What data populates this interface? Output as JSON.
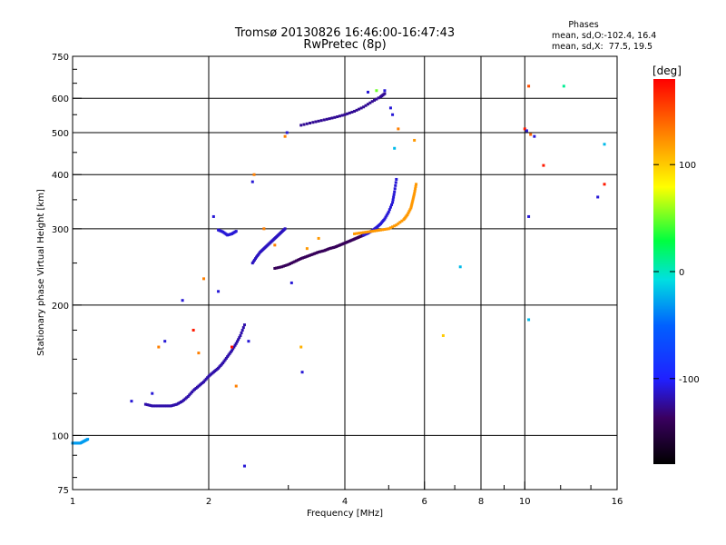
{
  "chart_data": {
    "type": "scatter",
    "title": "Tromsø 20130826 16:46:00-16:47:43",
    "subtitle": "RwPretec (8p)",
    "xlabel": "Frequency [MHz]",
    "ylabel": "Stationary phase Virtual Height [km]",
    "x_scale": "log",
    "y_scale": "log",
    "xlim": [
      1,
      16
    ],
    "ylim": [
      75,
      750
    ],
    "x_ticks": [
      1,
      2,
      4,
      6,
      8,
      10,
      16
    ],
    "x_tick_labels": [
      "1",
      "2",
      "4",
      "6",
      "8",
      "10",
      "16"
    ],
    "x_grid": [
      2,
      4,
      6,
      8,
      10
    ],
    "y_ticks": [
      75,
      100,
      200,
      300,
      400,
      500,
      600,
      750
    ],
    "y_tick_labels": [
      "75",
      "100",
      "200",
      "300",
      "400",
      "500",
      "600",
      "750"
    ],
    "y_grid": [
      100,
      200,
      300,
      400,
      500,
      600
    ],
    "grid": true,
    "phase_stats": {
      "header": "Phases",
      "line_o": "mean, sd,O:-102.4, 16.4",
      "line_x": "mean, sd,X:  77.5, 19.5"
    },
    "colorbar": {
      "label": "[deg]",
      "range": [
        -180,
        180
      ],
      "ticks": [
        100,
        0,
        -100
      ],
      "tick_labels": [
        "100",
        "0",
        "-100"
      ]
    },
    "traces": [
      {
        "x": [
          1.0,
          1.02,
          1.04,
          1.06,
          1.08
        ],
        "y": [
          96,
          96,
          96,
          97,
          98
        ],
        "phase": -30
      },
      {
        "x": [
          1.45,
          1.5,
          1.55,
          1.6,
          1.65,
          1.7,
          1.75,
          1.8,
          1.85,
          1.9,
          1.95,
          2.0,
          2.05,
          2.1,
          2.15,
          2.2,
          2.25,
          2.3,
          2.35,
          2.4
        ],
        "y": [
          118,
          117,
          117,
          117,
          117,
          118,
          120,
          123,
          127,
          130,
          133,
          137,
          140,
          143,
          147,
          152,
          157,
          163,
          170,
          180
        ],
        "phase": -120
      },
      {
        "x": [
          2.8,
          2.9,
          3.0,
          3.1,
          3.2,
          3.3,
          3.4,
          3.5,
          3.6,
          3.7,
          3.8,
          3.9,
          4.0,
          4.1,
          4.2,
          4.3,
          4.4
        ],
        "y": [
          243,
          245,
          248,
          252,
          256,
          259,
          262,
          265,
          267,
          270,
          272,
          275,
          278,
          281,
          284,
          287,
          290
        ],
        "phase": -140
      },
      {
        "x": [
          4.4,
          4.5,
          4.6,
          4.7,
          4.8,
          4.9,
          5.0,
          5.1,
          5.15,
          5.2
        ],
        "y": [
          290,
          293,
          297,
          302,
          308,
          316,
          328,
          345,
          365,
          390
        ],
        "phase": -110
      },
      {
        "x": [
          4.2,
          4.4,
          4.6,
          4.8,
          5.0,
          5.2,
          5.4,
          5.5,
          5.6,
          5.65,
          5.7,
          5.75
        ],
        "y": [
          292,
          294,
          296,
          298,
          300,
          306,
          315,
          323,
          335,
          348,
          362,
          380
        ],
        "phase": 120
      },
      {
        "x": [
          3.2,
          3.4,
          3.6,
          3.8,
          4.0,
          4.2,
          4.4,
          4.6,
          4.8,
          4.9
        ],
        "y": [
          520,
          528,
          535,
          542,
          550,
          560,
          573,
          590,
          605,
          615
        ],
        "phase": -125
      },
      {
        "x": [
          2.5,
          2.55,
          2.6,
          2.65,
          2.7,
          2.75,
          2.8,
          2.85,
          2.9,
          2.95
        ],
        "y": [
          250,
          258,
          265,
          270,
          275,
          280,
          285,
          290,
          295,
          300
        ],
        "phase": -115
      },
      {
        "x": [
          2.1,
          2.15,
          2.2,
          2.25,
          2.3
        ],
        "y": [
          298,
          295,
          290,
          292,
          296
        ],
        "phase": -110
      }
    ],
    "scattered_points": [
      {
        "x": 1.35,
        "y": 120,
        "phase": -110
      },
      {
        "x": 1.5,
        "y": 125,
        "phase": -110
      },
      {
        "x": 1.55,
        "y": 160,
        "phase": 130
      },
      {
        "x": 1.6,
        "y": 165,
        "phase": -110
      },
      {
        "x": 1.75,
        "y": 205,
        "phase": -110
      },
      {
        "x": 1.85,
        "y": 175,
        "phase": 170
      },
      {
        "x": 1.9,
        "y": 155,
        "phase": 130
      },
      {
        "x": 1.95,
        "y": 230,
        "phase": 130
      },
      {
        "x": 2.05,
        "y": 320,
        "phase": -110
      },
      {
        "x": 2.1,
        "y": 215,
        "phase": -110
      },
      {
        "x": 2.25,
        "y": 160,
        "phase": 175
      },
      {
        "x": 2.3,
        "y": 130,
        "phase": 130
      },
      {
        "x": 2.45,
        "y": 165,
        "phase": -110
      },
      {
        "x": 2.5,
        "y": 385,
        "phase": -110
      },
      {
        "x": 2.52,
        "y": 400,
        "phase": 130
      },
      {
        "x": 2.4,
        "y": 85,
        "phase": -110
      },
      {
        "x": 2.65,
        "y": 300,
        "phase": 130
      },
      {
        "x": 2.8,
        "y": 275,
        "phase": 130
      },
      {
        "x": 2.95,
        "y": 490,
        "phase": 130
      },
      {
        "x": 2.98,
        "y": 500,
        "phase": -110
      },
      {
        "x": 3.05,
        "y": 225,
        "phase": -110
      },
      {
        "x": 3.2,
        "y": 160,
        "phase": 110
      },
      {
        "x": 3.22,
        "y": 140,
        "phase": -110
      },
      {
        "x": 3.3,
        "y": 270,
        "phase": 120
      },
      {
        "x": 3.5,
        "y": 285,
        "phase": 120
      },
      {
        "x": 4.5,
        "y": 620,
        "phase": -110
      },
      {
        "x": 4.7,
        "y": 625,
        "phase": 50
      },
      {
        "x": 4.9,
        "y": 625,
        "phase": -110
      },
      {
        "x": 5.05,
        "y": 570,
        "phase": -110
      },
      {
        "x": 5.1,
        "y": 550,
        "phase": -110
      },
      {
        "x": 5.15,
        "y": 460,
        "phase": -20
      },
      {
        "x": 5.25,
        "y": 510,
        "phase": 130
      },
      {
        "x": 5.7,
        "y": 480,
        "phase": 120
      },
      {
        "x": 6.6,
        "y": 170,
        "phase": 100
      },
      {
        "x": 7.2,
        "y": 245,
        "phase": -20
      },
      {
        "x": 10.0,
        "y": 510,
        "phase": 170
      },
      {
        "x": 10.1,
        "y": 505,
        "phase": -110
      },
      {
        "x": 10.2,
        "y": 640,
        "phase": 150
      },
      {
        "x": 10.2,
        "y": 320,
        "phase": -110
      },
      {
        "x": 10.2,
        "y": 185,
        "phase": -20
      },
      {
        "x": 10.3,
        "y": 495,
        "phase": 140
      },
      {
        "x": 10.5,
        "y": 490,
        "phase": -110
      },
      {
        "x": 11.0,
        "y": 420,
        "phase": 170
      },
      {
        "x": 12.2,
        "y": 640,
        "phase": 10
      },
      {
        "x": 14.5,
        "y": 355,
        "phase": -110
      },
      {
        "x": 15.0,
        "y": 380,
        "phase": 170
      },
      {
        "x": 15.0,
        "y": 470,
        "phase": -20
      }
    ]
  }
}
